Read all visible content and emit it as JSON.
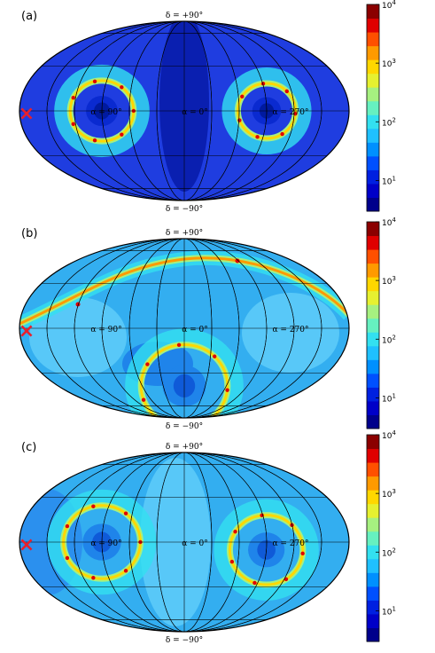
{
  "chart_data": [
    {
      "type": "heatmap",
      "projection": "mollweide",
      "title": "(a)",
      "grid": true,
      "labels": {
        "north": "δ = +90°",
        "south": "δ = −90°",
        "ra": [
          "α = 90°",
          "α = 0°",
          "α = 270°"
        ]
      },
      "marker": {
        "symbol": "×",
        "color": "#e8202c",
        "ra_deg": 180,
        "dec_deg": 0
      },
      "colorbar": {
        "scale": "log",
        "range": [
          3,
          10000
        ],
        "ticks": [
          "10^1",
          "10^2",
          "10^3",
          "10^4"
        ],
        "tick_values": [
          10,
          100,
          1000,
          10000
        ]
      },
      "features": [
        {
          "kind": "ring",
          "center_ra": 90,
          "center_dec": 0,
          "radius_deg": 33,
          "peak": 10000
        },
        {
          "kind": "ring",
          "center_ra": 270,
          "center_dec": 0,
          "radius_deg": 30,
          "peak": 10000
        }
      ]
    },
    {
      "type": "heatmap",
      "projection": "mollweide",
      "title": "(b)",
      "grid": true,
      "labels": {
        "north": "δ = +90°",
        "south": "δ = −90°",
        "ra": [
          "α = 90°",
          "α = 0°",
          "α = 270°"
        ]
      },
      "marker": {
        "symbol": "×",
        "color": "#e8202c",
        "ra_deg": 180,
        "dec_deg": 0
      },
      "colorbar": {
        "scale": "log",
        "range": [
          3,
          10000
        ],
        "ticks": [
          "10^1",
          "10^2",
          "10^3",
          "10^4"
        ],
        "tick_values": [
          10,
          100,
          1000,
          10000
        ]
      },
      "features": [
        {
          "kind": "great-circle-band",
          "peak": 10000
        },
        {
          "kind": "ring",
          "center_ra": 0,
          "center_dec": -40,
          "radius_deg": 45,
          "peak": 10000
        }
      ]
    },
    {
      "type": "heatmap",
      "projection": "mollweide",
      "title": "(c)",
      "grid": true,
      "labels": {
        "north": "δ = +90°",
        "south": "δ = −90°",
        "ra": [
          "α = 90°",
          "α = 0°",
          "α = 270°"
        ]
      },
      "marker": {
        "symbol": "×",
        "color": "#e8202c",
        "ra_deg": 180,
        "dec_deg": 0
      },
      "colorbar": {
        "scale": "log",
        "range": [
          3,
          10000
        ],
        "ticks": [
          "10^1",
          "10^2",
          "10^3",
          "10^4"
        ],
        "tick_values": [
          10,
          100,
          1000,
          10000
        ]
      },
      "features": [
        {
          "kind": "ring",
          "center_ra": 90,
          "center_dec": 0,
          "radius_deg": 40,
          "peak": 10000
        },
        {
          "kind": "ring",
          "center_ra": 270,
          "center_dec": -5,
          "radius_deg": 38,
          "peak": 10000
        }
      ]
    }
  ]
}
